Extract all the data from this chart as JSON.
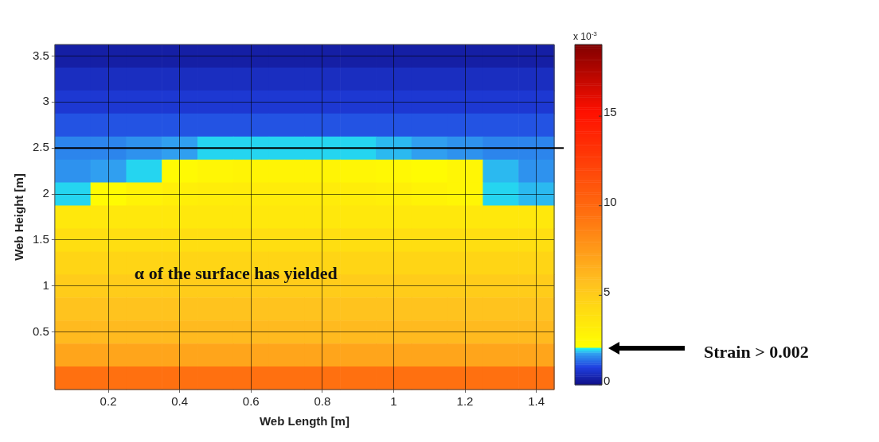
{
  "chart_data": {
    "type": "heatmap",
    "xlabel": "Web Length [m]",
    "ylabel": "Web Height [m]",
    "clabel": "x 10$^{-3}$",
    "categories": [
      null,
      "0.2",
      null,
      "0.4",
      null,
      "0.6",
      null,
      "0.8",
      null,
      "1",
      null,
      "1.2",
      null,
      "1.4"
    ],
    "y_categories": [
      "3.5",
      null,
      "3",
      null,
      "2.5",
      null,
      "2",
      null,
      "1.5",
      null,
      "1",
      null,
      "0.5",
      null,
      null
    ],
    "clim": [
      0,
      19
    ],
    "cticks": [
      0,
      5,
      10,
      15
    ],
    "grid": true,
    "cells": [
      [
        0.3,
        0.3,
        0.3,
        0.3,
        0.3,
        0.3,
        0.3,
        0.3,
        0.3,
        0.3,
        0.3,
        0.3,
        0.3,
        0.3
      ],
      [
        0.6,
        0.6,
        0.6,
        0.6,
        0.6,
        0.6,
        0.6,
        0.6,
        0.6,
        0.6,
        0.6,
        0.6,
        0.6,
        0.6
      ],
      [
        0.8,
        0.8,
        0.8,
        0.8,
        0.8,
        0.8,
        0.8,
        0.8,
        0.8,
        0.8,
        0.8,
        0.8,
        0.8,
        0.8
      ],
      [
        1.1,
        1.1,
        1.1,
        1.1,
        1.1,
        1.1,
        1.1,
        1.1,
        1.1,
        1.1,
        1.1,
        1.1,
        1.1,
        1.1
      ],
      [
        1.5,
        1.5,
        1.6,
        1.7,
        1.9,
        1.9,
        1.9,
        1.9,
        1.9,
        1.8,
        1.7,
        1.6,
        1.5,
        1.5
      ],
      [
        1.6,
        1.7,
        1.9,
        2.4,
        2.6,
        2.7,
        2.7,
        2.7,
        2.6,
        2.5,
        2.3,
        2.6,
        1.8,
        1.6
      ],
      [
        1.9,
        2.3,
        2.8,
        3,
        3.1,
        3.2,
        3.2,
        3.2,
        3.1,
        3,
        2.8,
        2.6,
        1.9,
        1.8
      ],
      [
        3.4,
        3.4,
        3.4,
        3.4,
        3.4,
        3.4,
        3.4,
        3.4,
        3.4,
        3.4,
        3.4,
        3.4,
        3.4,
        3.4
      ],
      [
        4,
        4,
        4,
        4,
        4,
        4,
        4,
        4,
        4,
        4,
        4,
        4,
        4,
        4
      ],
      [
        4.5,
        4.5,
        4.5,
        4.5,
        4.5,
        4.5,
        4.5,
        4.5,
        4.5,
        4.5,
        4.5,
        4.5,
        4.5,
        4.5
      ],
      [
        5,
        5,
        5,
        5,
        5,
        5,
        5,
        5,
        5,
        5,
        5,
        5,
        5,
        5
      ],
      [
        5.5,
        5.5,
        5.5,
        5.5,
        5.5,
        5.5,
        5.5,
        5.5,
        5.5,
        5.5,
        5.5,
        5.5,
        5.5,
        5.5
      ],
      [
        6,
        6,
        6,
        6,
        6,
        6,
        6,
        6,
        6,
        6,
        6,
        6,
        6,
        6
      ],
      [
        7,
        7,
        7,
        7,
        7,
        7,
        7,
        7,
        7,
        7,
        7,
        7,
        7,
        7
      ],
      [
        9.5,
        9.5,
        9.5,
        9.5,
        9.5,
        9.5,
        9.5,
        9.5,
        9.5,
        9.5,
        9.5,
        9.5,
        9.5,
        9.5
      ]
    ],
    "ref_lines": [
      {
        "axis": "y",
        "value": "2.5",
        "color": "#000000"
      }
    ],
    "annotations": [
      "α of the surface has yielded",
      "Strain > 0.002"
    ]
  }
}
